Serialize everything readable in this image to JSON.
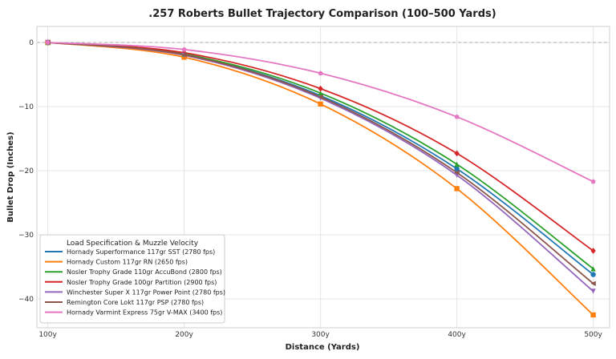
{
  "chart_data": {
    "type": "line",
    "title": ".257 Roberts Bullet Trajectory Comparison (100–500 Yards)",
    "xlabel": "Distance (Yards)",
    "ylabel": "Bullet Drop (Inches)",
    "categories": [
      "100y",
      "200y",
      "300y",
      "400y",
      "500y"
    ],
    "x": [
      100,
      200,
      300,
      400,
      500
    ],
    "xlim": [
      92,
      512
    ],
    "ylim": [
      -44.5,
      2.5
    ],
    "yticks": [
      0,
      -10,
      -20,
      -30,
      -40
    ],
    "grid": true,
    "zero_line": true,
    "legend": {
      "title": "Load Specification & Muzzle Velocity",
      "position": "lower-left"
    },
    "series": [
      {
        "name": "Hornady Superformance 117gr SST (2780 fps)",
        "color": "#1f77b4",
        "marker": "circle",
        "values": [
          0,
          -1.9,
          -8.3,
          -19.7,
          -36.2
        ]
      },
      {
        "name": "Hornady Custom 117gr RN (2650 fps)",
        "color": "#ff7f0e",
        "marker": "square",
        "values": [
          0,
          -2.3,
          -9.6,
          -22.8,
          -42.5
        ]
      },
      {
        "name": "Nosler Trophy Grade 110gr AccuBond (2800 fps)",
        "color": "#2ca02c",
        "marker": "triangle",
        "values": [
          0,
          -1.8,
          -7.9,
          -19.0,
          -35.3
        ]
      },
      {
        "name": "Nosler Trophy Grade 100gr Partition (2900 fps)",
        "color": "#d62728",
        "marker": "diamond",
        "values": [
          0,
          -1.6,
          -7.2,
          -17.3,
          -32.5
        ]
      },
      {
        "name": "Winchester Super X 117gr Power Point (2780 fps)",
        "color": "#9467bd",
        "marker": "triangle-down",
        "values": [
          0,
          -2.0,
          -8.7,
          -20.7,
          -38.8
        ]
      },
      {
        "name": "Remington Core Lokt 117gr PSP (2780 fps)",
        "color": "#8c564b",
        "marker": "triangle-left",
        "values": [
          0,
          -1.9,
          -8.5,
          -20.3,
          -37.6
        ]
      },
      {
        "name": "Hornady Varmint Express 75gr V-MAX (3400 fps)",
        "color": "#e377c2",
        "marker": "pentagon",
        "values": [
          0,
          -1.1,
          -4.8,
          -11.6,
          -21.7
        ]
      }
    ]
  }
}
